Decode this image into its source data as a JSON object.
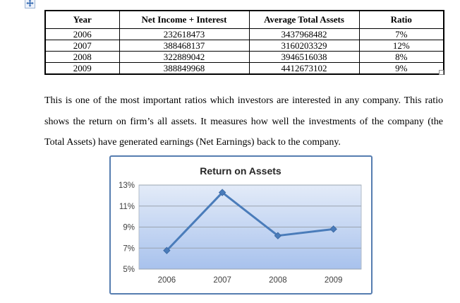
{
  "icons": {
    "table_move_handle": "four-direction-move-arrows",
    "table_resize_handle": "small-resize-square"
  },
  "table": {
    "headers": [
      "Year",
      "Net Income + Interest",
      "Average Total Assets",
      "Ratio"
    ],
    "rows": [
      [
        "2006",
        "232618473",
        "3437968482",
        "7%"
      ],
      [
        "2007",
        "388468137",
        "3160203329",
        "12%"
      ],
      [
        "2008",
        "322889042",
        "3946516038",
        "8%"
      ],
      [
        "2009",
        "388849968",
        "4412673102",
        "9%"
      ]
    ]
  },
  "paragraph": {
    "text": "This is one of the most important ratios which investors are interested in any company. This ratio shows the return on firm’s all assets. It measures how well the investments of the company (the Total Assets) have generated earnings (Net Earnings) back to the company."
  },
  "chart_data": {
    "type": "line",
    "title": "Return on Assets",
    "categories": [
      "2006",
      "2007",
      "2008",
      "2009"
    ],
    "series": [
      {
        "name": "Ratio",
        "values": [
          6.77,
          12.29,
          8.18,
          8.81
        ]
      }
    ],
    "ylim": [
      5,
      13
    ],
    "yticks": [
      5,
      7,
      9,
      11,
      13
    ],
    "ytick_labels": [
      "5%",
      "7%",
      "9%",
      "11%",
      "13%"
    ],
    "grid": true,
    "legend": "none",
    "marker": "diamond",
    "line_color": "#4a7cba",
    "marker_stroke": "#3d6aa5",
    "gridline_color": "#9aa4b0",
    "plot_border_color": "#b3bcc8",
    "plot_gradient": [
      "#e3ebf8",
      "#a8c2ed"
    ],
    "title_color": "#262626",
    "tick_color": "#404040",
    "frame_color": "#567db0"
  }
}
